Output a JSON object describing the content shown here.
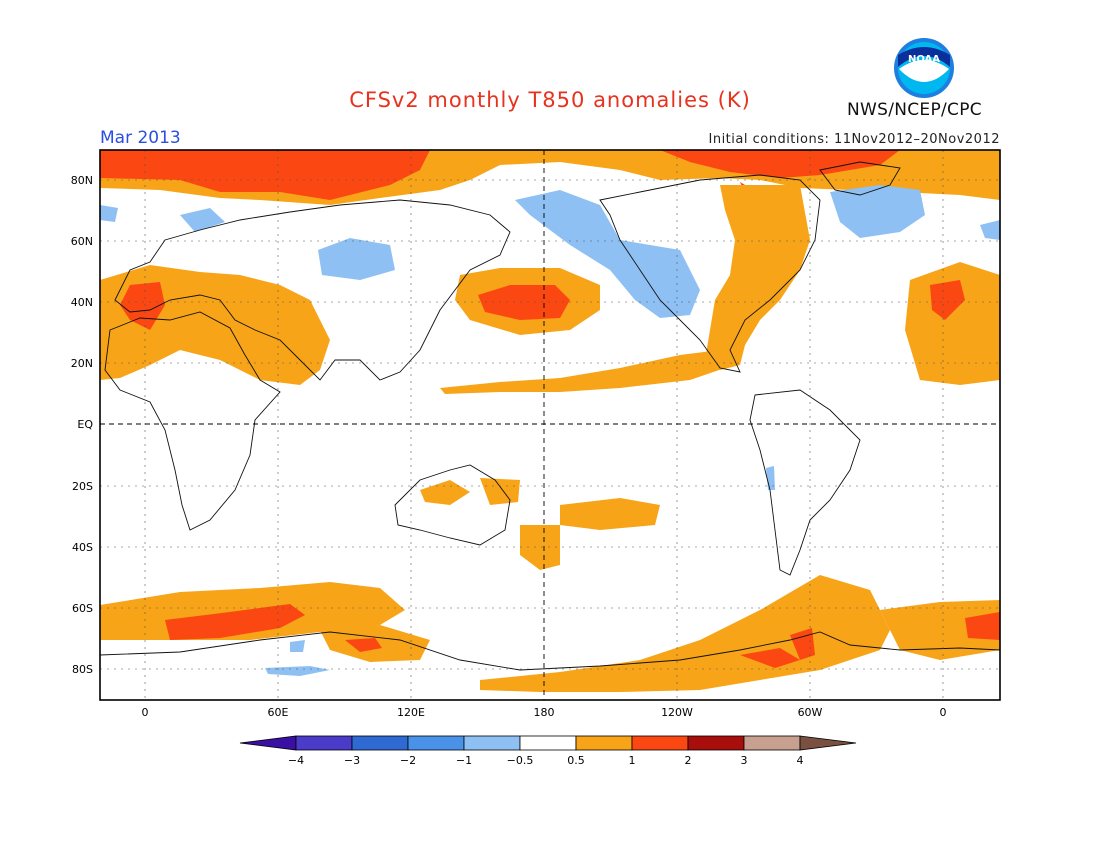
{
  "title": "CFSv2 monthly T850 anomalies (K)",
  "month": "Mar 2013",
  "initial_conditions": "Initial conditions: 11Nov2012–20Nov2012",
  "agency": "NWS/NCEP/CPC",
  "logo_text": "NOAA",
  "lat_labels": [
    "80N",
    "60N",
    "40N",
    "20N",
    "EQ",
    "20S",
    "40S",
    "60S",
    "80S"
  ],
  "lon_labels": [
    "0",
    "60E",
    "120E",
    "180",
    "120W",
    "60W",
    "0"
  ],
  "colorbar": {
    "colors": [
      "#3a0fa3",
      "#4a3cc8",
      "#2e6ad2",
      "#4a92e8",
      "#8ec0f4",
      "#ffffff",
      "#f7a418",
      "#fb4712",
      "#a80f0c",
      "#c8a090",
      "#7a5040"
    ],
    "labels": [
      "−4",
      "−3",
      "−2",
      "−1",
      "−0.5",
      "0.5",
      "1",
      "2",
      "3",
      "4"
    ]
  }
}
